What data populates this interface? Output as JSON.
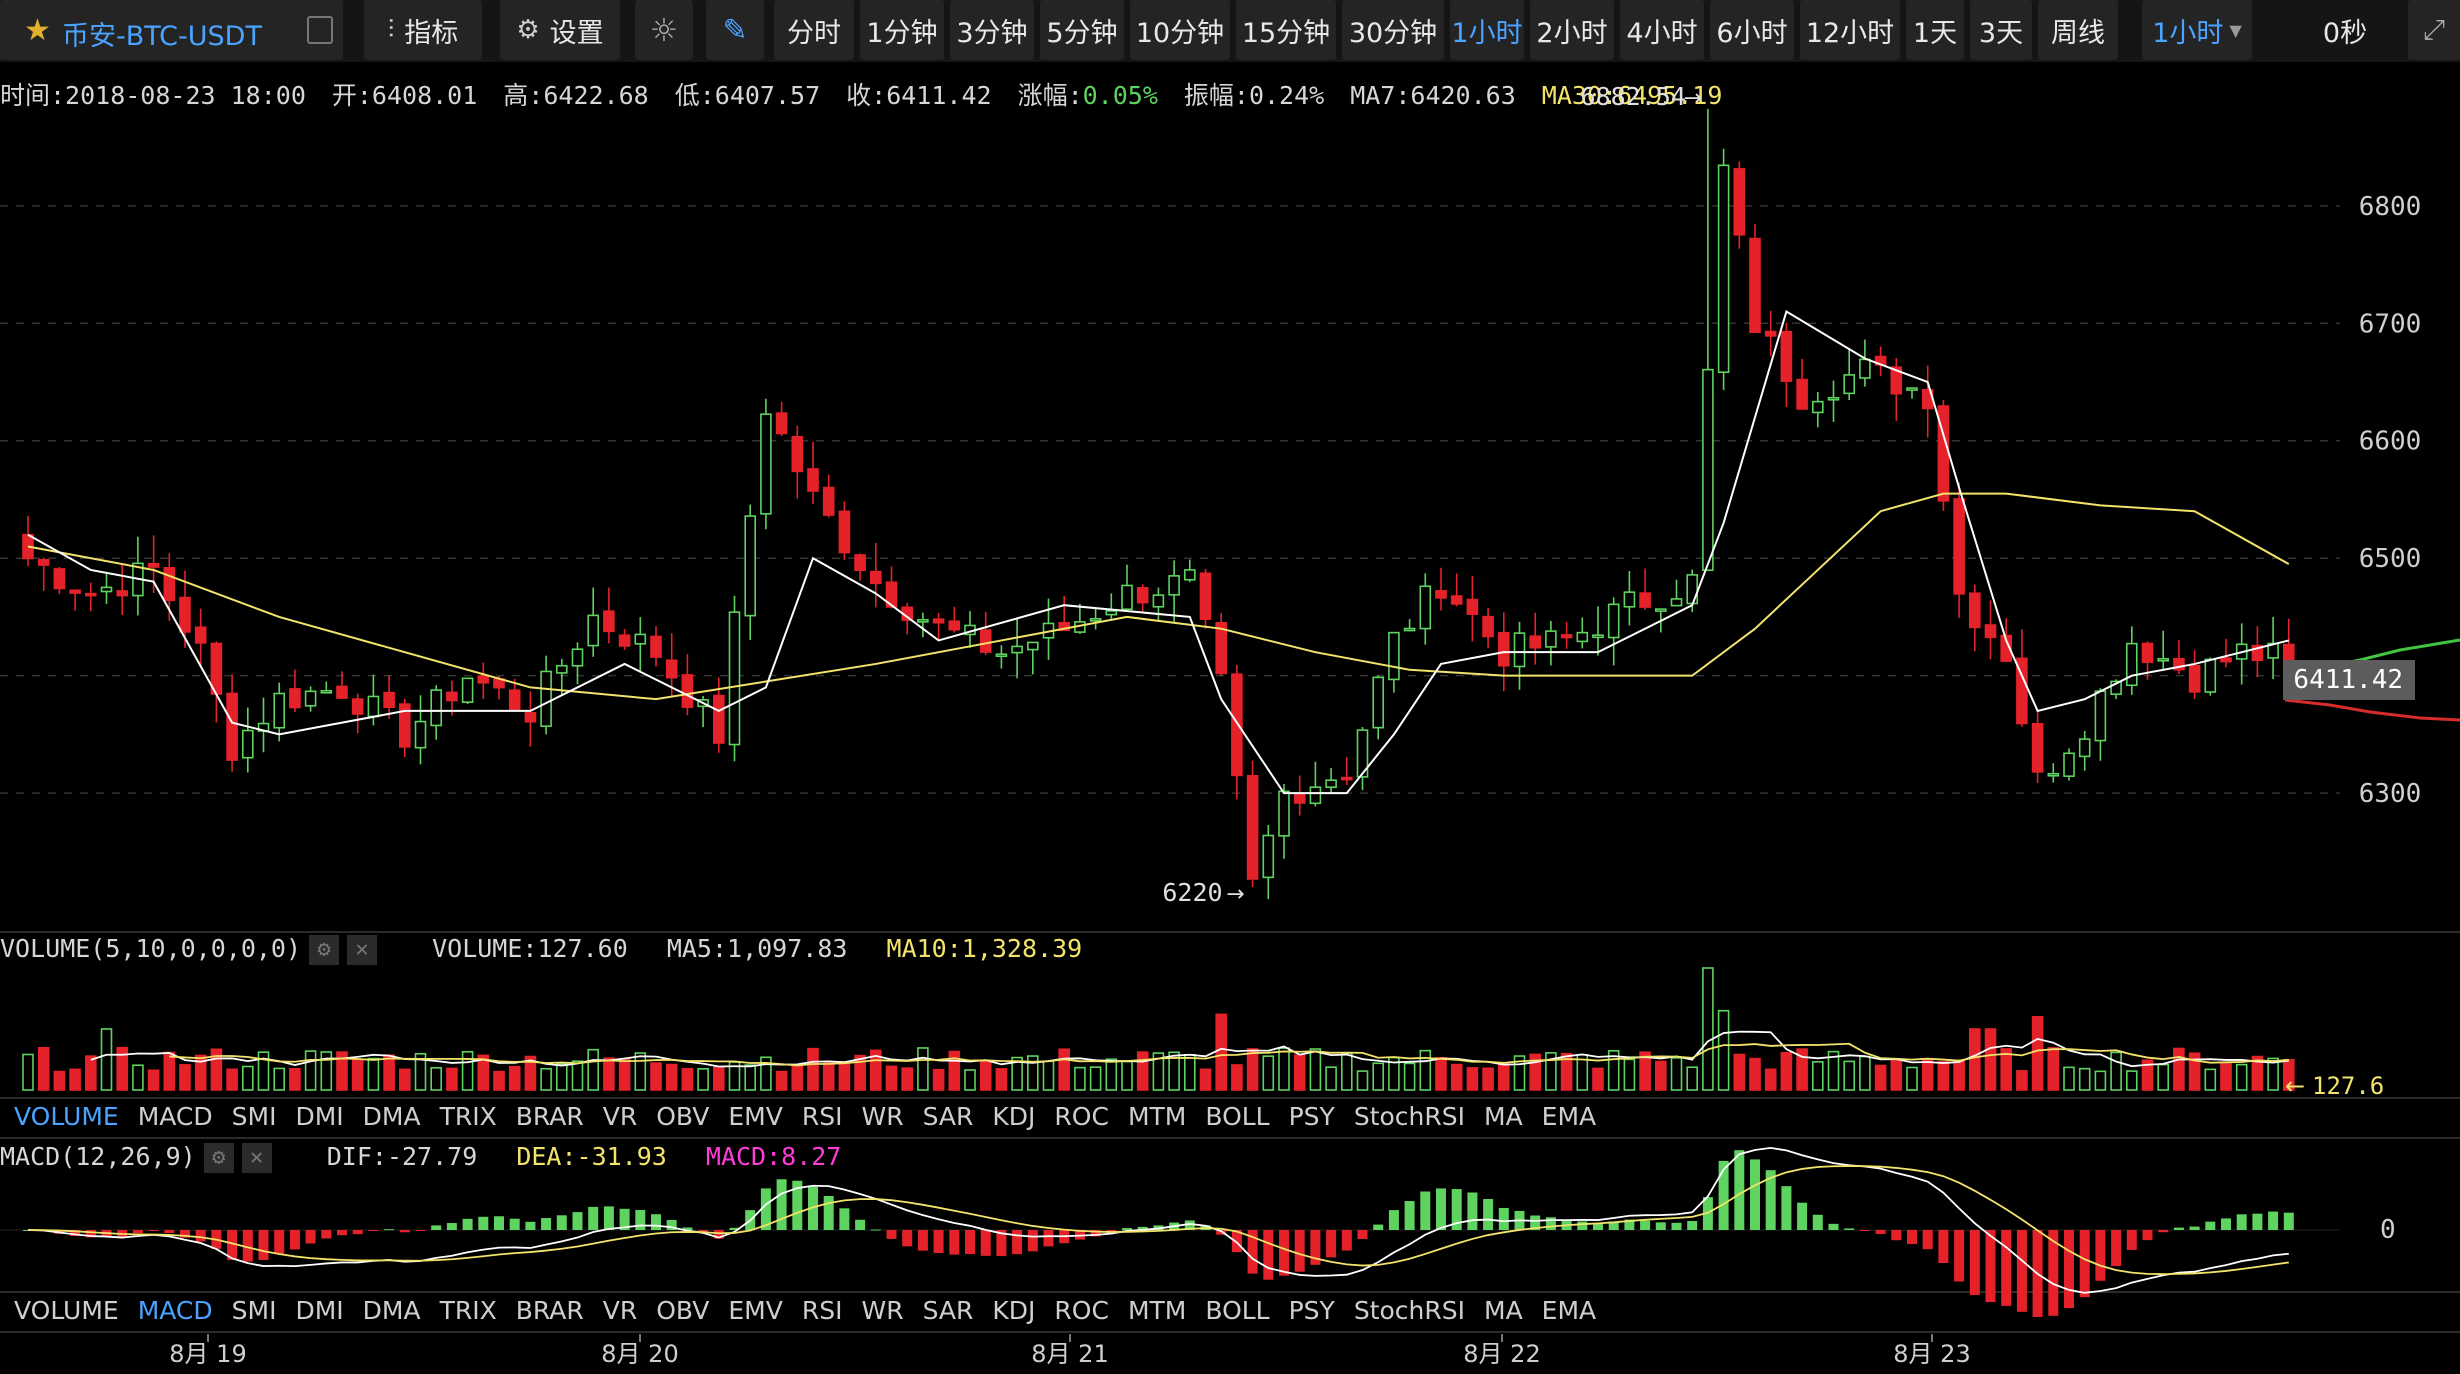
{
  "toolbar": {
    "symbol": "币安-BTC-USDT",
    "indicator_label": "指标",
    "settings_label": "设置",
    "periods": [
      "分时",
      "1分钟",
      "3分钟",
      "5分钟",
      "10分钟",
      "15分钟",
      "30分钟",
      "1小时",
      "2小时",
      "4小时",
      "6小时",
      "12小时",
      "1天",
      "3天",
      "周线"
    ],
    "active_period": "1小时",
    "period_dropdown": "1小时",
    "countdown": "0秒"
  },
  "info": {
    "time": "时间:2018-08-23 18:00",
    "open": "开:6408.01",
    "high": "高:6422.68",
    "low": "低:6407.57",
    "close": "收:6411.42",
    "change_label": "涨幅:",
    "change_value": "0.05%",
    "amplitude": "振幅:0.24%",
    "ma7": "MA7:6420.63",
    "ma30": "MA30:6495.19"
  },
  "volume_legend": {
    "name": "VOLUME(5,10,0,0,0,0)",
    "volume": "VOLUME:127.60",
    "ma5": "MA5:1,097.83",
    "ma10": "MA10:1,328.39"
  },
  "macd_legend": {
    "name": "MACD(12,26,9)",
    "dif": "DIF:-27.79",
    "dea": "DEA:-31.93",
    "macd": "MACD:8.27"
  },
  "indicator_tabs": [
    "VOLUME",
    "MACD",
    "SMI",
    "DMI",
    "DMA",
    "TRIX",
    "BRAR",
    "VR",
    "OBV",
    "EMV",
    "RSI",
    "WR",
    "SAR",
    "KDJ",
    "ROC",
    "MTM",
    "BOLL",
    "PSY",
    "StochRSI",
    "MA",
    "EMA"
  ],
  "tabs_top_active": "VOLUME",
  "tabs_bottom_active": "MACD",
  "colors": {
    "up": "#5fd35f",
    "down": "#e5222a",
    "ma7": "#ffffff",
    "ma30": "#f2e46b",
    "accent": "#4aa3ff",
    "dea": "#f2e46b",
    "macd": "#ff3bd8"
  },
  "chart_data": {
    "type": "candlestick",
    "price_ticks": [
      6800,
      6700,
      6600,
      6500,
      6300
    ],
    "price_range": [
      6192,
      6902
    ],
    "x_labels": [
      "8月 19",
      "8月 20",
      "8月 21",
      "8月 22",
      "8月 23"
    ],
    "high_marker": "6882.54",
    "low_marker": "6220",
    "last_price": "6411.42",
    "volume_last_label": "127.6",
    "macd_zero_label": "0",
    "ohlc_anchors": [
      [
        0,
        6500
      ],
      [
        4,
        6470
      ],
      [
        8,
        6490
      ],
      [
        11,
        6420
      ],
      [
        13,
        6340
      ],
      [
        16,
        6380
      ],
      [
        20,
        6390
      ],
      [
        24,
        6350
      ],
      [
        28,
        6400
      ],
      [
        32,
        6370
      ],
      [
        36,
        6450
      ],
      [
        40,
        6420
      ],
      [
        44,
        6350
      ],
      [
        47,
        6630
      ],
      [
        50,
        6550
      ],
      [
        54,
        6480
      ],
      [
        58,
        6440
      ],
      [
        62,
        6420
      ],
      [
        66,
        6440
      ],
      [
        70,
        6470
      ],
      [
        74,
        6480
      ],
      [
        76,
        6390
      ],
      [
        78,
        6220
      ],
      [
        80,
        6300
      ],
      [
        84,
        6320
      ],
      [
        87,
        6430
      ],
      [
        90,
        6480
      ],
      [
        94,
        6420
      ],
      [
        98,
        6430
      ],
      [
        102,
        6460
      ],
      [
        106,
        6480
      ],
      [
        108,
        6830
      ],
      [
        110,
        6700
      ],
      [
        113,
        6640
      ],
      [
        117,
        6660
      ],
      [
        121,
        6640
      ],
      [
        123,
        6470
      ],
      [
        126,
        6420
      ],
      [
        128,
        6310
      ],
      [
        131,
        6360
      ],
      [
        134,
        6430
      ],
      [
        138,
        6400
      ],
      [
        141,
        6420
      ],
      [
        144,
        6413
      ]
    ],
    "ma7_line": [
      [
        0,
        6520
      ],
      [
        4,
        6490
      ],
      [
        8,
        6480
      ],
      [
        13,
        6360
      ],
      [
        16,
        6350
      ],
      [
        24,
        6370
      ],
      [
        32,
        6370
      ],
      [
        38,
        6410
      ],
      [
        44,
        6370
      ],
      [
        47,
        6390
      ],
      [
        50,
        6500
      ],
      [
        54,
        6470
      ],
      [
        58,
        6430
      ],
      [
        66,
        6460
      ],
      [
        74,
        6450
      ],
      [
        76,
        6380
      ],
      [
        80,
        6300
      ],
      [
        84,
        6300
      ],
      [
        87,
        6350
      ],
      [
        90,
        6410
      ],
      [
        94,
        6420
      ],
      [
        100,
        6420
      ],
      [
        106,
        6460
      ],
      [
        108,
        6530
      ],
      [
        112,
        6710
      ],
      [
        117,
        6670
      ],
      [
        121,
        6650
      ],
      [
        123,
        6560
      ],
      [
        126,
        6430
      ],
      [
        128,
        6370
      ],
      [
        131,
        6380
      ],
      [
        134,
        6400
      ],
      [
        138,
        6410
      ],
      [
        144,
        6430
      ]
    ],
    "ma30_line": [
      [
        0,
        6510
      ],
      [
        8,
        6490
      ],
      [
        16,
        6450
      ],
      [
        24,
        6420
      ],
      [
        32,
        6390
      ],
      [
        40,
        6380
      ],
      [
        47,
        6395
      ],
      [
        54,
        6410
      ],
      [
        62,
        6430
      ],
      [
        70,
        6450
      ],
      [
        76,
        6440
      ],
      [
        82,
        6420
      ],
      [
        88,
        6405
      ],
      [
        94,
        6400
      ],
      [
        102,
        6400
      ],
      [
        106,
        6400
      ],
      [
        110,
        6440
      ],
      [
        114,
        6490
      ],
      [
        118,
        6540
      ],
      [
        122,
        6555
      ],
      [
        126,
        6555
      ],
      [
        132,
        6545
      ],
      [
        138,
        6540
      ],
      [
        144,
        6495
      ]
    ],
    "volume_bar_count": 145,
    "macd_bar_count": 145
  }
}
